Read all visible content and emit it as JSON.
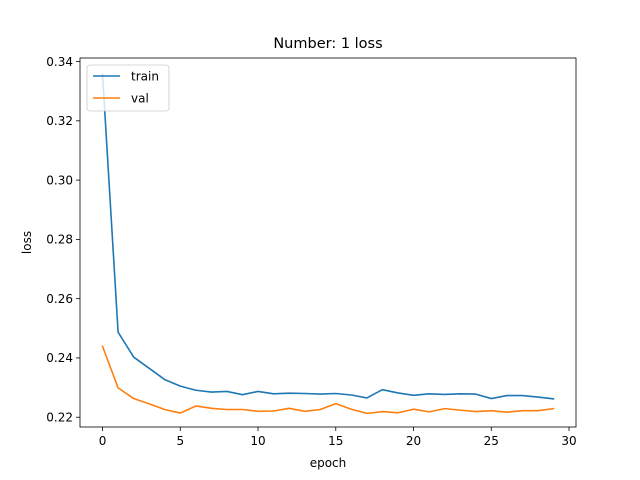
{
  "chart_data": {
    "type": "line",
    "title": "Number: 1 loss",
    "xlabel": "epoch",
    "ylabel": "loss",
    "xlim": [
      -1.45,
      30.45
    ],
    "ylim": [
      0.2167,
      0.3412
    ],
    "xticks": [
      0,
      5,
      10,
      15,
      20,
      25,
      30
    ],
    "yticks": [
      0.22,
      0.24,
      0.26,
      0.28,
      0.3,
      0.32,
      0.34
    ],
    "ytick_labels": [
      "0.22",
      "0.24",
      "0.26",
      "0.28",
      "0.30",
      "0.32",
      "0.34"
    ],
    "grid": false,
    "legend_position": "upper-left",
    "x": [
      0,
      1,
      2,
      3,
      4,
      5,
      6,
      7,
      8,
      9,
      10,
      11,
      12,
      13,
      14,
      15,
      16,
      17,
      18,
      19,
      20,
      21,
      22,
      23,
      24,
      25,
      26,
      27,
      28,
      29
    ],
    "series": [
      {
        "name": "train",
        "color": "#1f77b4",
        "values": [
          0.3356,
          0.2487,
          0.2403,
          0.2365,
          0.2327,
          0.2305,
          0.2291,
          0.2285,
          0.2287,
          0.2276,
          0.2287,
          0.2279,
          0.2281,
          0.228,
          0.2278,
          0.228,
          0.2275,
          0.2265,
          0.2293,
          0.2282,
          0.2274,
          0.2279,
          0.2277,
          0.2279,
          0.2278,
          0.2263,
          0.2273,
          0.2273,
          0.2268,
          0.2262
        ]
      },
      {
        "name": "val",
        "color": "#ff7f0e",
        "values": [
          0.2439,
          0.2299,
          0.2263,
          0.2245,
          0.2226,
          0.2214,
          0.2238,
          0.223,
          0.2226,
          0.2226,
          0.222,
          0.2221,
          0.223,
          0.222,
          0.2226,
          0.2246,
          0.2227,
          0.2213,
          0.2219,
          0.2215,
          0.2227,
          0.2218,
          0.2229,
          0.2224,
          0.2219,
          0.2222,
          0.2217,
          0.2222,
          0.2222,
          0.2229
        ]
      }
    ]
  }
}
